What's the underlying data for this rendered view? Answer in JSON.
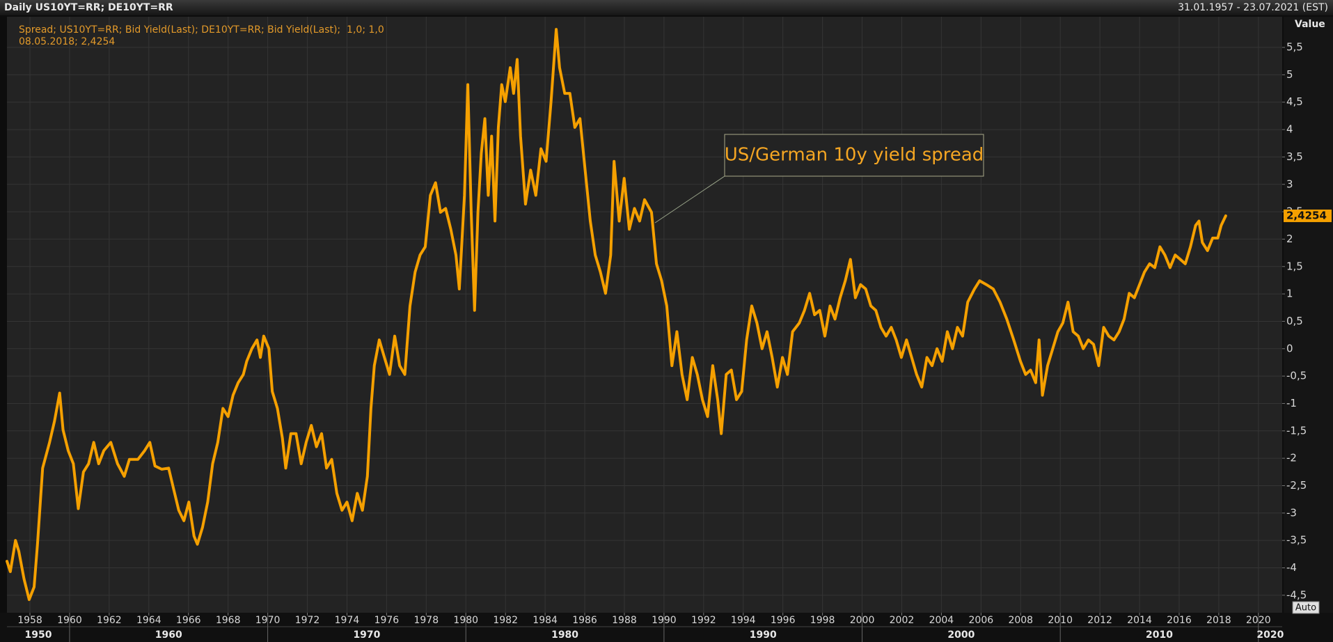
{
  "chart_data": {
    "type": "line",
    "header_left": "Daily US10YT=RR; DE10YT=RR",
    "header_right": "31.01.1957 - 23.07.2021 (EST)",
    "axis_title": "Value",
    "cursor_label": "08.05.2018; 2,4254",
    "annotation": "US/German 10y yield spread",
    "button": "Auto",
    "last_value": {
      "value": 2.4254,
      "label": "2,4254"
    },
    "grid": true,
    "xlim": [
      1956.84,
      2021.2
    ],
    "ylim": [
      -4.82,
      6.06
    ],
    "xticks": [
      1958,
      1960,
      1962,
      1964,
      1966,
      1968,
      1970,
      1972,
      1974,
      1976,
      1978,
      1980,
      1982,
      1984,
      1986,
      1988,
      1990,
      1992,
      1994,
      1996,
      1998,
      2000,
      2002,
      2004,
      2006,
      2008,
      2010,
      2012,
      2014,
      2016,
      2018,
      2020
    ],
    "decades": [
      1950,
      1960,
      1970,
      1980,
      1990,
      2000,
      2010,
      2020
    ],
    "yticks": [
      {
        "value": -4.5,
        "label": "-4,5"
      },
      -4,
      {
        "value": -3.5,
        "label": "-3,5"
      },
      -3,
      {
        "value": -2.5,
        "label": "-2,5"
      },
      -2,
      {
        "value": -1.5,
        "label": "-1,5"
      },
      -1,
      {
        "value": -0.5,
        "label": "-0,5"
      },
      0,
      {
        "value": 0.5,
        "label": "0,5"
      },
      1,
      {
        "value": 1.5,
        "label": "1,5"
      },
      2,
      {
        "value": 2.5,
        "label": "2,5"
      },
      3,
      {
        "value": 3.5,
        "label": "3,5"
      },
      4,
      {
        "value": 4.5,
        "label": "4,5"
      },
      5,
      {
        "value": 5.5,
        "label": "5,5"
      }
    ],
    "x": [
      1956.84,
      1957.01,
      1957.27,
      1957.44,
      1957.7,
      1957.96,
      1958.21,
      1958.38,
      1958.64,
      1958.99,
      1959.24,
      1959.5,
      1959.67,
      1959.93,
      1960.19,
      1960.44,
      1960.7,
      1960.96,
      1961.22,
      1961.47,
      1961.73,
      1962.08,
      1962.42,
      1962.76,
      1963.02,
      1963.45,
      1963.79,
      1964.05,
      1964.31,
      1964.65,
      1965.0,
      1965.25,
      1965.51,
      1965.77,
      1966.02,
      1966.28,
      1966.45,
      1966.71,
      1966.97,
      1967.22,
      1967.48,
      1967.74,
      1968.0,
      1968.25,
      1968.51,
      1968.77,
      1968.94,
      1969.2,
      1969.46,
      1969.63,
      1969.8,
      1970.06,
      1970.23,
      1970.49,
      1970.74,
      1970.91,
      1971.17,
      1971.43,
      1971.69,
      1971.94,
      1972.2,
      1972.46,
      1972.72,
      1972.97,
      1973.23,
      1973.49,
      1973.75,
      1974.0,
      1974.26,
      1974.52,
      1974.78,
      1975.03,
      1975.21,
      1975.38,
      1975.63,
      1975.89,
      1976.15,
      1976.41,
      1976.66,
      1976.92,
      1977.18,
      1977.44,
      1977.69,
      1977.95,
      1978.21,
      1978.47,
      1978.72,
      1978.98,
      1979.24,
      1979.5,
      1979.67,
      1979.93,
      1980.1,
      1980.27,
      1980.44,
      1980.61,
      1980.78,
      1980.96,
      1981.13,
      1981.3,
      1981.47,
      1981.64,
      1981.81,
      1981.99,
      1982.24,
      1982.41,
      1982.59,
      1982.76,
      1983.01,
      1983.27,
      1983.53,
      1983.79,
      1984.05,
      1984.3,
      1984.56,
      1984.73,
      1984.99,
      1985.25,
      1985.5,
      1985.76,
      1986.02,
      1986.28,
      1986.53,
      1986.79,
      1987.05,
      1987.31,
      1987.48,
      1987.74,
      1987.99,
      1988.25,
      1988.51,
      1988.77,
      1989.02,
      1989.37,
      1989.62,
      1989.88,
      1990.14,
      1990.4,
      1990.65,
      1990.91,
      1991.17,
      1991.43,
      1991.68,
      1991.94,
      1992.2,
      1992.46,
      1992.71,
      1992.89,
      1993.14,
      1993.4,
      1993.66,
      1993.92,
      1994.17,
      1994.43,
      1994.69,
      1994.95,
      1995.2,
      1995.46,
      1995.72,
      1995.98,
      1996.23,
      1996.49,
      1996.83,
      1997.09,
      1997.35,
      1997.6,
      1997.86,
      1998.12,
      1998.38,
      1998.63,
      1998.89,
      1999.15,
      1999.41,
      1999.66,
      1999.92,
      2000.18,
      2000.44,
      2000.69,
      2000.95,
      2001.21,
      2001.47,
      2001.72,
      2001.98,
      2002.24,
      2002.5,
      2002.75,
      2003.01,
      2003.27,
      2003.53,
      2003.78,
      2004.04,
      2004.3,
      2004.56,
      2004.81,
      2005.07,
      2005.33,
      2005.67,
      2005.93,
      2006.27,
      2006.62,
      2006.96,
      2007.3,
      2007.65,
      2007.99,
      2008.25,
      2008.5,
      2008.76,
      2008.93,
      2009.1,
      2009.36,
      2009.62,
      2009.88,
      2010.13,
      2010.39,
      2010.65,
      2010.91,
      2011.16,
      2011.42,
      2011.68,
      2011.94,
      2012.19,
      2012.45,
      2012.71,
      2012.97,
      2013.22,
      2013.48,
      2013.74,
      2014.0,
      2014.25,
      2014.51,
      2014.77,
      2015.03,
      2015.28,
      2015.54,
      2015.8,
      2016.06,
      2016.31,
      2016.57,
      2016.83,
      2017.0,
      2017.17,
      2017.43,
      2017.69,
      2017.95,
      2018.12,
      2018.35
    ],
    "series": [
      {
        "name": "Spread; US10YT=RR; Bid Yield(Last); DE10YT=RR; Bid Yield(Last);  1,0; 1,0",
        "color": "#f5a000",
        "values": [
          -3.88,
          -4.07,
          -3.5,
          -3.7,
          -4.2,
          -4.58,
          -4.35,
          -3.57,
          -2.18,
          -1.71,
          -1.32,
          -0.81,
          -1.48,
          -1.86,
          -2.1,
          -2.92,
          -2.25,
          -2.1,
          -1.71,
          -2.1,
          -1.86,
          -1.71,
          -2.1,
          -2.33,
          -2.02,
          -2.02,
          -1.86,
          -1.71,
          -2.14,
          -2.2,
          -2.18,
          -2.56,
          -2.95,
          -3.14,
          -2.8,
          -3.42,
          -3.57,
          -3.26,
          -2.8,
          -2.1,
          -1.71,
          -1.09,
          -1.24,
          -0.85,
          -0.62,
          -0.47,
          -0.23,
          0,
          0.16,
          -0.16,
          0.23,
          0,
          -0.78,
          -1.09,
          -1.63,
          -2.18,
          -1.55,
          -1.55,
          -2.1,
          -1.71,
          -1.4,
          -1.79,
          -1.55,
          -2.18,
          -2.02,
          -2.64,
          -2.95,
          -2.8,
          -3.14,
          -2.64,
          -2.95,
          -2.33,
          -1.09,
          -0.31,
          0.16,
          -0.16,
          -0.47,
          0.23,
          -0.31,
          -0.47,
          0.78,
          1.4,
          1.71,
          1.86,
          2.8,
          3.03,
          2.49,
          2.56,
          2.18,
          1.71,
          1.09,
          2.8,
          4.82,
          2.49,
          0.7,
          2.49,
          3.57,
          4.2,
          2.8,
          3.88,
          2.33,
          4.04,
          4.82,
          4.51,
          5.13,
          4.66,
          5.28,
          3.88,
          2.64,
          3.26,
          2.8,
          3.65,
          3.42,
          4.51,
          5.83,
          5.13,
          4.66,
          4.66,
          4.04,
          4.2,
          3.26,
          2.33,
          1.71,
          1.4,
          1.01,
          1.71,
          3.42,
          2.33,
          3.11,
          2.18,
          2.56,
          2.33,
          2.72,
          2.49,
          1.55,
          1.24,
          0.78,
          -0.31,
          0.31,
          -0.47,
          -0.93,
          -0.16,
          -0.47,
          -0.93,
          -1.24,
          -0.31,
          -0.93,
          -1.55,
          -0.47,
          -0.39,
          -0.93,
          -0.78,
          0.16,
          0.78,
          0.47,
          0,
          0.31,
          -0.16,
          -0.7,
          -0.16,
          -0.47,
          0.31,
          0.47,
          0.7,
          1.01,
          0.62,
          0.7,
          0.23,
          0.78,
          0.54,
          0.93,
          1.24,
          1.63,
          0.93,
          1.17,
          1.09,
          0.78,
          0.7,
          0.39,
          0.23,
          0.39,
          0.16,
          -0.16,
          0.16,
          -0.16,
          -0.47,
          -0.7,
          -0.16,
          -0.31,
          0,
          -0.23,
          0.31,
          0,
          0.39,
          0.23,
          0.85,
          1.09,
          1.24,
          1.17,
          1.09,
          0.85,
          0.54,
          0.16,
          -0.23,
          -0.47,
          -0.39,
          -0.62,
          0.16,
          -0.85,
          -0.31,
          0,
          0.31,
          0.47,
          0.85,
          0.31,
          0.23,
          0,
          0.16,
          0.08,
          -0.31,
          0.39,
          0.23,
          0.16,
          0.31,
          0.54,
          1.01,
          0.93,
          1.17,
          1.4,
          1.55,
          1.48,
          1.86,
          1.71,
          1.48,
          1.71,
          1.63,
          1.55,
          1.86,
          2.25,
          2.33,
          1.94,
          1.79,
          2.02,
          2.02,
          2.25,
          2.4254
        ]
      }
    ]
  }
}
